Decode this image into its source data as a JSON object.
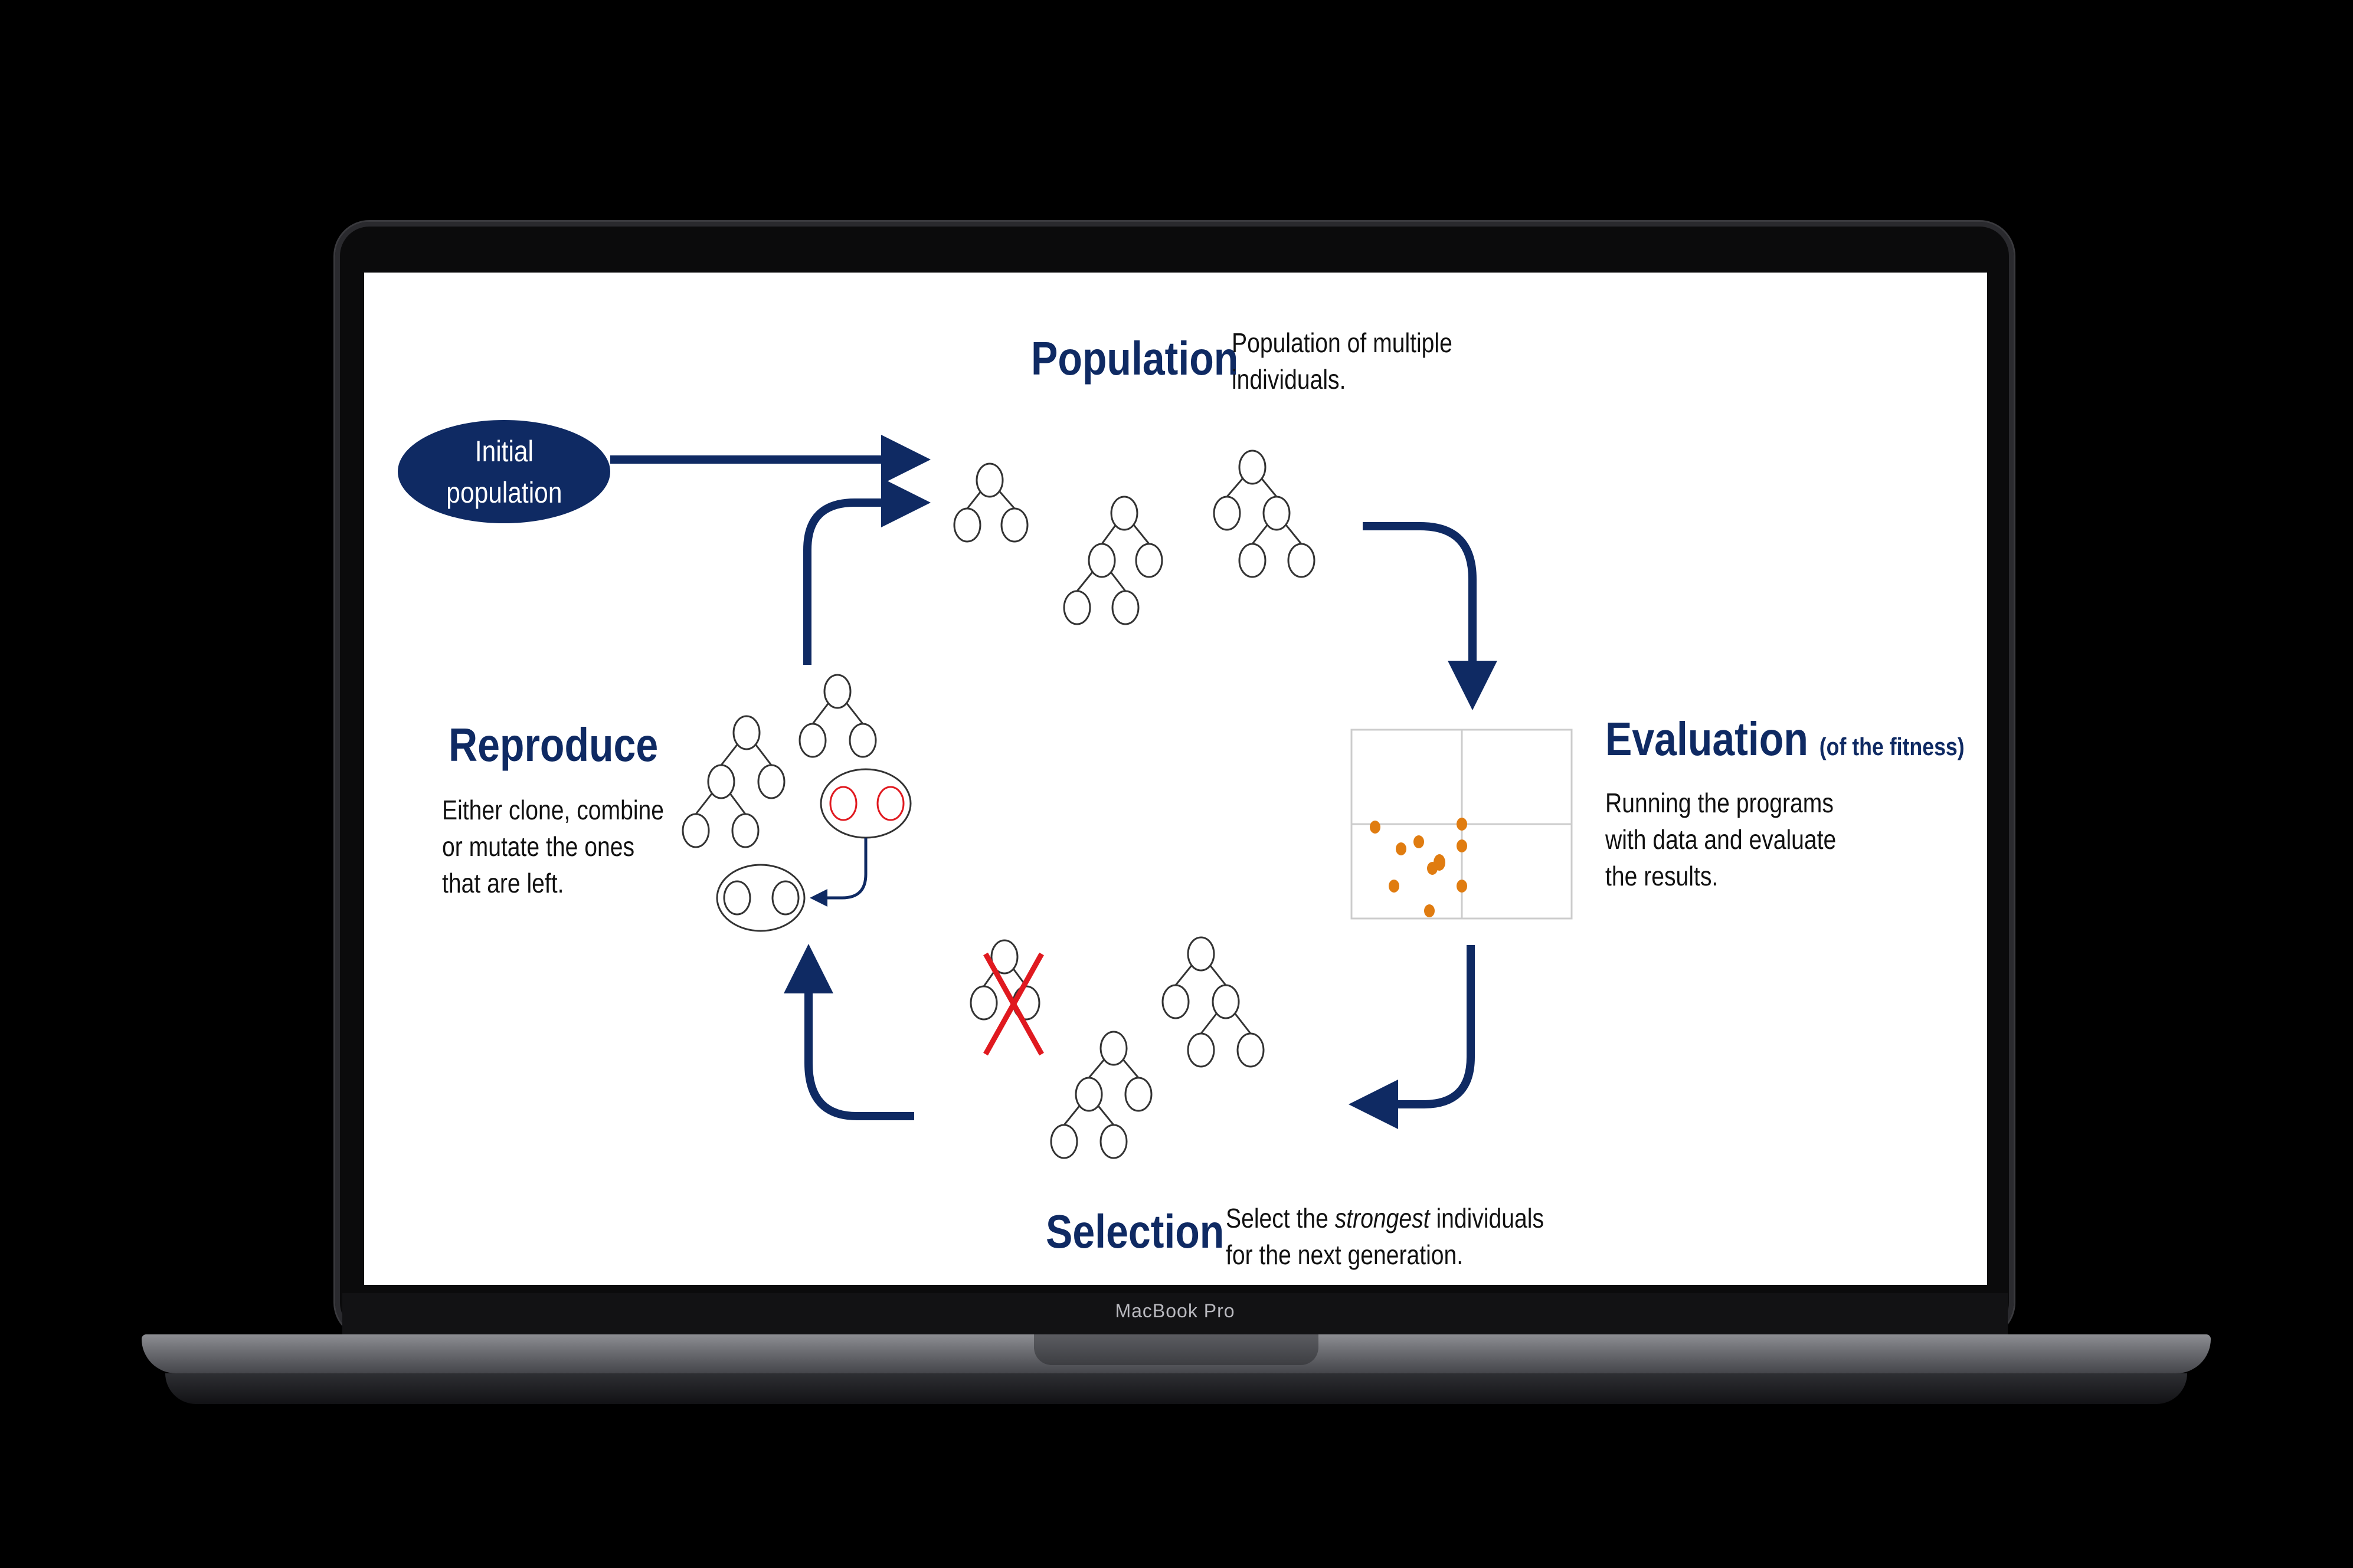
{
  "device": {
    "label": "MacBook Pro"
  },
  "colors": {
    "navy": "#0f2a63",
    "red": "#e0191f",
    "orange": "#e07c10"
  },
  "initial": {
    "line1": "Initial",
    "line2": "population"
  },
  "population": {
    "title": "Population",
    "desc1": "Population of multiple",
    "desc2": "individuals."
  },
  "evaluation": {
    "title": "Evaluation",
    "subtitle": "(of the fitness)",
    "desc1": "Running the programs",
    "desc2": "with data and evaluate",
    "desc3": "the results."
  },
  "selection": {
    "title": "Selection",
    "desc1_pre": "Select the ",
    "desc1_em": "strongest",
    "desc1_post": " individuals",
    "desc2": "for the next generation."
  },
  "reproduce": {
    "title": "Reproduce",
    "desc1": "Either clone, combine",
    "desc2": "or mutate the ones",
    "desc3": "that are left."
  }
}
